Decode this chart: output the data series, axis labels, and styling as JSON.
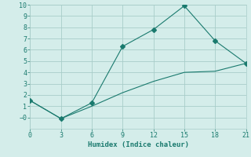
{
  "xlabel": "Humidex (Indice chaleur)",
  "line1_x": [
    0,
    3,
    6,
    9,
    12,
    15,
    18,
    21
  ],
  "line1_y": [
    1.5,
    -0.1,
    1.3,
    6.3,
    7.8,
    9.9,
    6.8,
    4.8
  ],
  "line2_x": [
    0,
    3,
    6,
    9,
    12,
    15,
    18,
    21
  ],
  "line2_y": [
    1.5,
    -0.1,
    1.0,
    2.2,
    3.2,
    4.0,
    4.1,
    4.8
  ],
  "line_color": "#1a7a6e",
  "bg_color": "#d4edea",
  "grid_color": "#a8cdc9",
  "xlim": [
    0,
    21
  ],
  "ylim": [
    -1,
    10
  ],
  "xticks": [
    0,
    3,
    6,
    9,
    12,
    15,
    18,
    21
  ],
  "yticks": [
    0,
    1,
    2,
    3,
    4,
    5,
    6,
    7,
    8,
    9,
    10
  ],
  "markersize": 3
}
